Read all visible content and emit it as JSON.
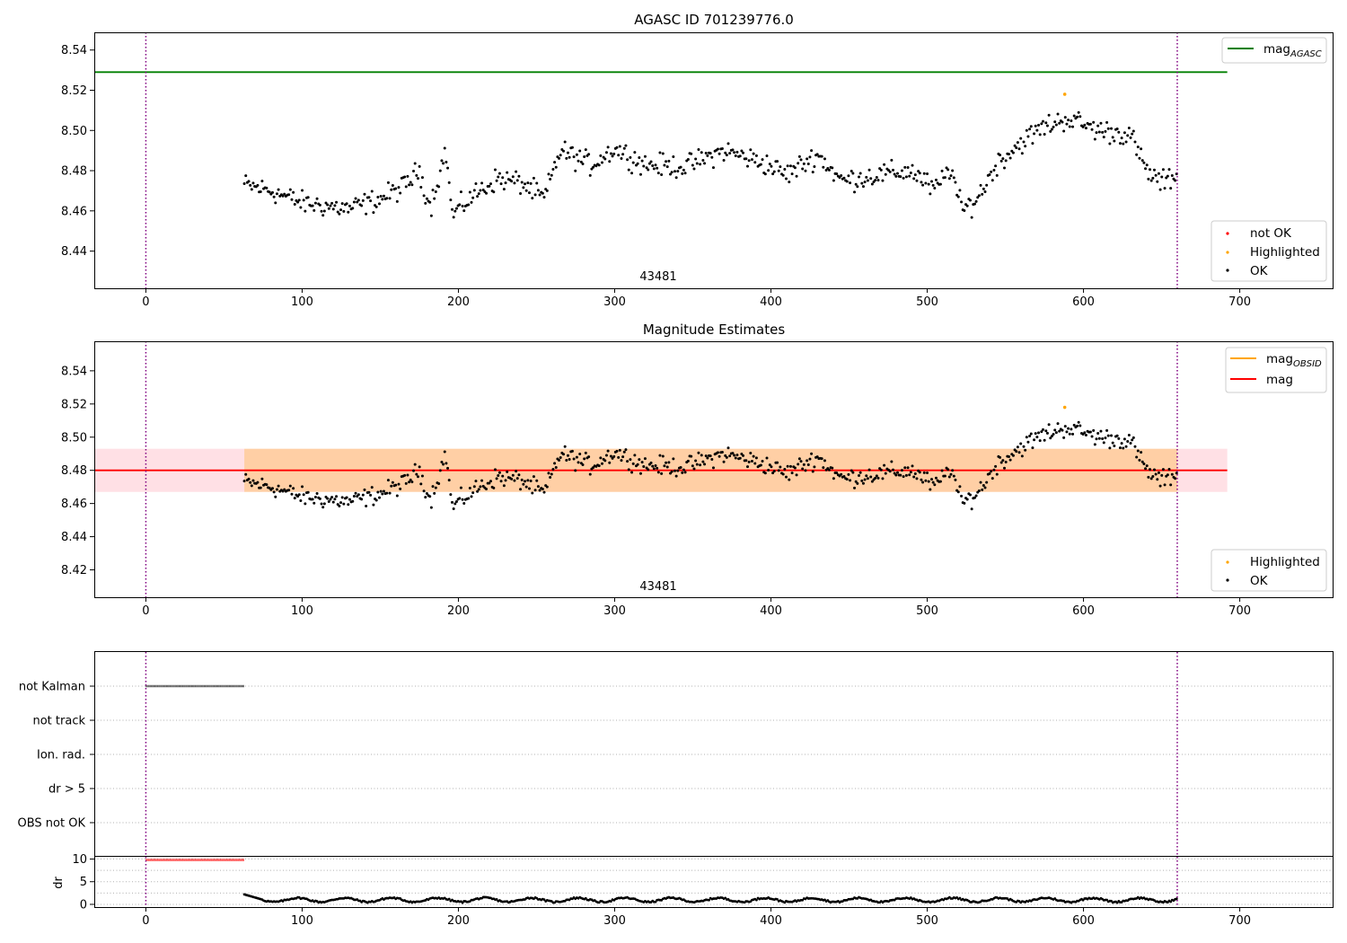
{
  "chart_data": [
    {
      "type": "scatter",
      "title": "AGASC ID 701239776.0",
      "annotation": "43481",
      "xlim": [
        -33,
        760
      ],
      "ylim": [
        8.4215,
        8.5488
      ],
      "xticks": [
        0,
        100,
        200,
        300,
        400,
        500,
        600,
        700
      ],
      "yticks": [
        8.44,
        8.46,
        8.48,
        8.5,
        8.52,
        8.54
      ],
      "ytick_labels": [
        "8.44",
        "8.46",
        "8.48",
        "8.50",
        "8.52",
        "8.54"
      ],
      "vlines": [
        0,
        660
      ],
      "hline": {
        "label_main": "mag",
        "label_sub": "AGASC",
        "y": 8.529,
        "x_range": [
          -33,
          692
        ],
        "color": "#008000"
      },
      "highlighted": [
        {
          "x": 588,
          "y": 8.518
        }
      ],
      "legend_top": [
        {
          "label_main": "mag",
          "label_sub": "AGASC",
          "color": "#008000",
          "kind": "line"
        }
      ],
      "legend_bottom": [
        {
          "label": "not OK",
          "color": "#ff0000",
          "kind": "dot"
        },
        {
          "label": "Highlighted",
          "color": "#ffa500",
          "kind": "dot"
        },
        {
          "label": "OK",
          "color": "#000000",
          "kind": "dot"
        }
      ],
      "grid": false
    },
    {
      "type": "scatter",
      "title": "Magnitude Estimates",
      "annotation": "43481",
      "xlim": [
        -33,
        760
      ],
      "ylim": [
        8.4035,
        8.5578
      ],
      "xticks": [
        0,
        100,
        200,
        300,
        400,
        500,
        600,
        700
      ],
      "yticks": [
        8.42,
        8.44,
        8.46,
        8.48,
        8.5,
        8.52,
        8.54
      ],
      "ytick_labels": [
        "8.42",
        "8.44",
        "8.46",
        "8.48",
        "8.50",
        "8.52",
        "8.54"
      ],
      "vlines": [
        0,
        660
      ],
      "mag": 8.48,
      "mag_band": [
        8.467,
        8.493
      ],
      "band_x_range": [
        -33,
        692
      ],
      "highlighted": [
        {
          "x": 588,
          "y": 8.518
        }
      ],
      "legend_top": [
        {
          "label_main": "mag",
          "label_sub": "OBSID",
          "color": "#ffa500",
          "kind": "line"
        },
        {
          "label_main": "mag",
          "label_sub": "",
          "color": "#ff0000",
          "kind": "line"
        }
      ],
      "legend_bottom": [
        {
          "label": "Highlighted",
          "color": "#ffa500",
          "kind": "dot"
        },
        {
          "label": "OK",
          "color": "#000000",
          "kind": "dot"
        }
      ],
      "grid": false
    },
    {
      "type": "scatter",
      "title": "",
      "xlim": [
        -33,
        760
      ],
      "xticks": [
        0,
        100,
        200,
        300,
        400,
        500,
        600,
        700
      ],
      "flags": [
        "not Kalman",
        "not track",
        "Ion. rad.",
        "dr > 5",
        "OBS not OK"
      ],
      "flag_spans": [
        {
          "flag": "not Kalman",
          "x_range": [
            0,
            63
          ]
        }
      ],
      "vlines": [
        0,
        660
      ],
      "grid": true
    },
    {
      "type": "scatter",
      "title": "",
      "ylabel": "dr",
      "xlim": [
        -33,
        760
      ],
      "ylim": [
        -0.6,
        10.5
      ],
      "xticks": [
        0,
        100,
        200,
        300,
        400,
        500,
        600,
        700
      ],
      "yticks": [
        0,
        5,
        10
      ],
      "ytick_labels": [
        "0",
        "5",
        "10"
      ],
      "clipped": {
        "x_range": [
          0,
          63
        ],
        "y": 9.8,
        "color": "#ff0000"
      },
      "series_x_range": [
        63,
        660
      ],
      "vlines": [
        0,
        660
      ],
      "grid": true
    }
  ]
}
